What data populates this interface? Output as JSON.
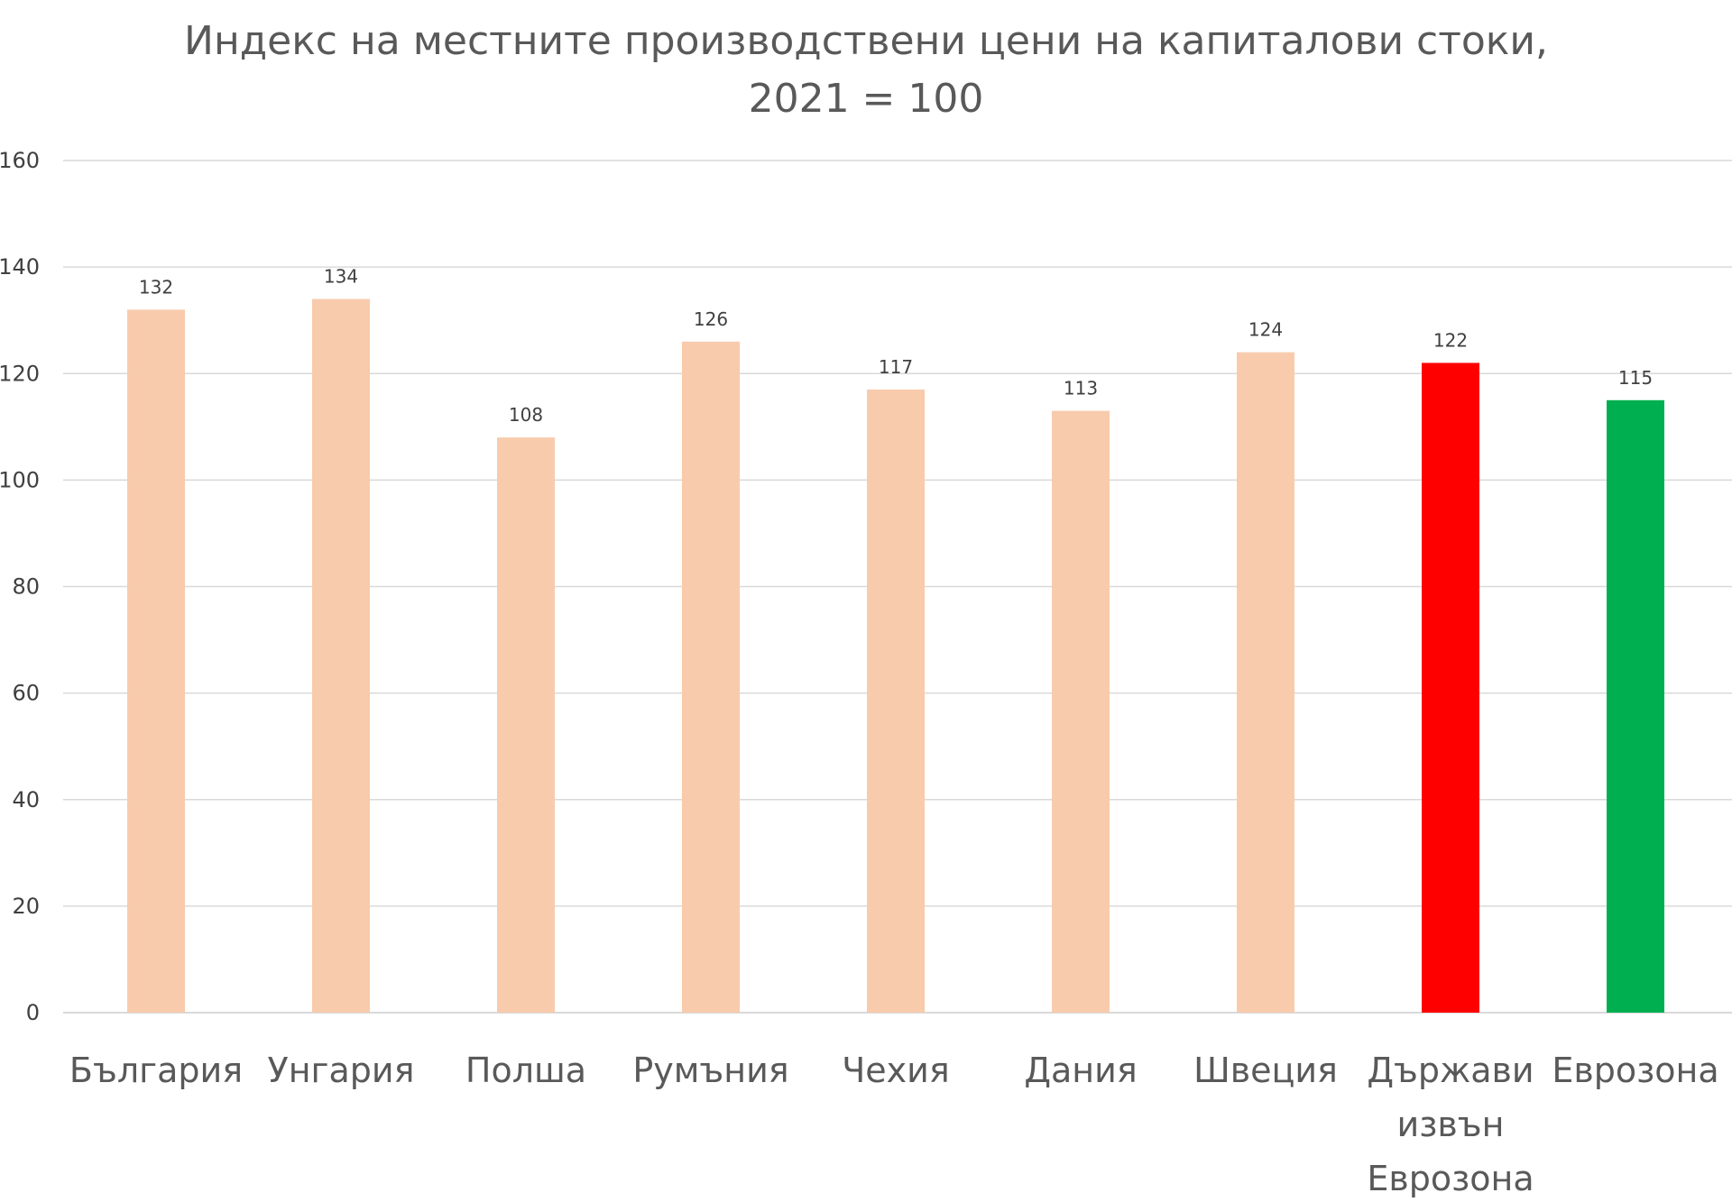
{
  "chart_data": {
    "type": "bar",
    "title_lines": [
      "Индекс на местните производствени цени на капиталови стоки,",
      "2021 = 100"
    ],
    "categories": [
      [
        "България"
      ],
      [
        "Унгария"
      ],
      [
        "Полша"
      ],
      [
        "Румъния"
      ],
      [
        "Чехия"
      ],
      [
        "Дания"
      ],
      [
        "Швеция"
      ],
      [
        "Държави",
        "извън",
        "Еврозона"
      ],
      [
        "Еврозона"
      ]
    ],
    "values": [
      132,
      134,
      108,
      126,
      117,
      113,
      124,
      122,
      115
    ],
    "bar_colors": [
      "#f8cbad",
      "#f8cbad",
      "#f8cbad",
      "#f8cbad",
      "#f8cbad",
      "#f8cbad",
      "#f8cbad",
      "#ff0000",
      "#00b050"
    ],
    "ylim": [
      0,
      160
    ],
    "y_ticks": [
      0,
      20,
      40,
      60,
      80,
      100,
      120,
      140,
      160
    ],
    "grid": true,
    "legend": "none"
  }
}
